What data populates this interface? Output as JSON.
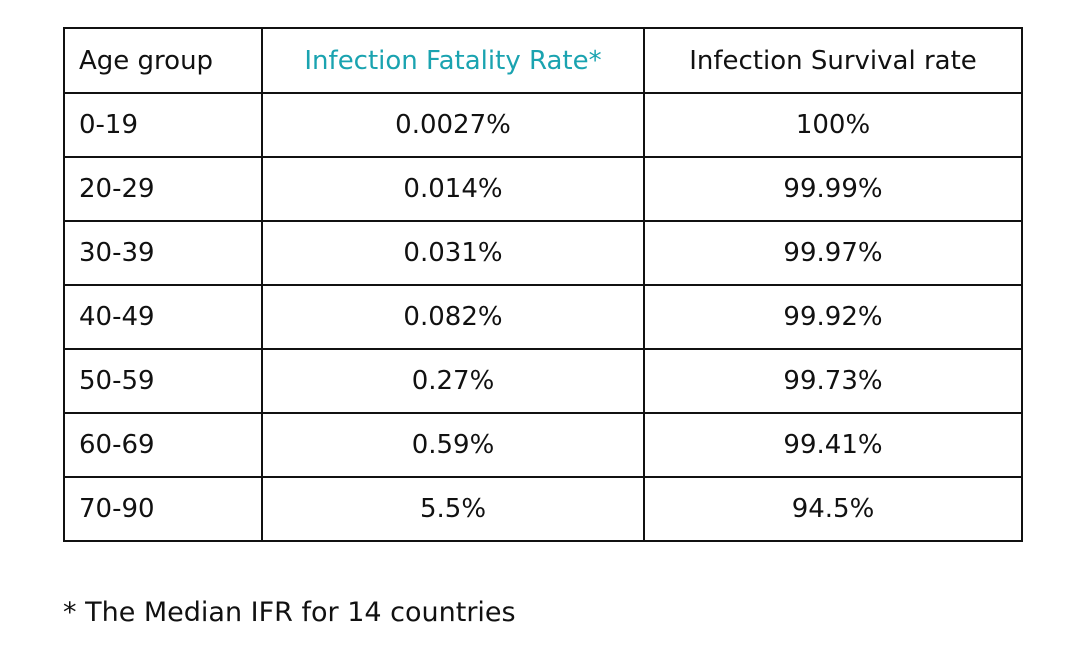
{
  "table": {
    "headers": [
      "Age group",
      "Infection Fatality Rate*",
      "Infection Survival rate"
    ],
    "rows": [
      {
        "age": "0-19",
        "ifr": "0.0027%",
        "survival": "100%"
      },
      {
        "age": "20-29",
        "ifr": "0.014%",
        "survival": "99.99%"
      },
      {
        "age": "30-39",
        "ifr": "0.031%",
        "survival": "99.97%"
      },
      {
        "age": "40-49",
        "ifr": "0.082%",
        "survival": "99.92%"
      },
      {
        "age": "50-59",
        "ifr": "0.27%",
        "survival": "99.73%"
      },
      {
        "age": "60-69",
        "ifr": "0.59%",
        "survival": "99.41%"
      },
      {
        "age": "70-90",
        "ifr": "5.5%",
        "survival": "94.5%"
      }
    ]
  },
  "footnote": "* The Median IFR for 14 countries",
  "colors": {
    "accent": "#1aa3b0",
    "text": "#111111",
    "border": "#111111"
  }
}
